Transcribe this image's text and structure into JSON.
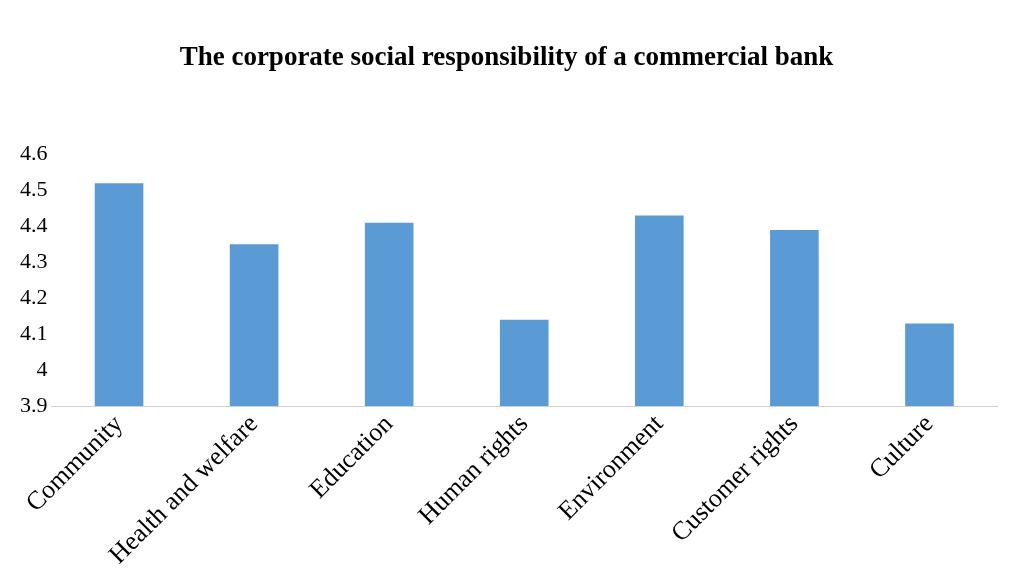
{
  "chart_data": {
    "type": "bar",
    "title": "The corporate social responsibility of a commercial bank",
    "categories": [
      "Community",
      "Health and welfare",
      "Education",
      "Human rights",
      "Environment",
      "Customer rights",
      "Culture"
    ],
    "values": [
      4.52,
      4.35,
      4.41,
      4.14,
      4.43,
      4.39,
      4.13
    ],
    "color": "#5b9bd5",
    "ylim": [
      3.9,
      4.6
    ],
    "yticks": [
      3.9,
      4,
      4.1,
      4.2,
      4.3,
      4.4,
      4.5,
      4.6
    ],
    "grid": false,
    "legend": false
  }
}
